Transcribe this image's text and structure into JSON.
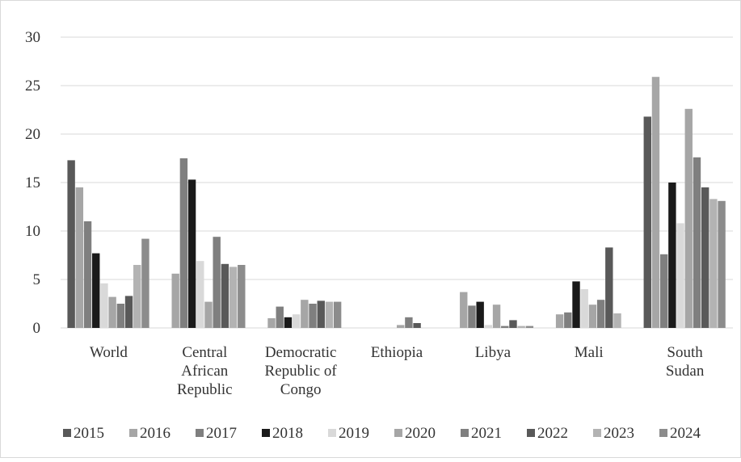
{
  "chart_data": {
    "type": "bar",
    "title": "",
    "xlabel": "",
    "ylabel": "",
    "ylim": [
      0,
      30
    ],
    "yticks": [
      "0",
      "5",
      "10",
      "15",
      "20",
      "25",
      "30"
    ],
    "grid": true,
    "legend_position": "bottom",
    "categories": [
      [
        "World"
      ],
      [
        "Central",
        "African",
        "Republic"
      ],
      [
        "Democratic",
        "Republic of",
        "Congo"
      ],
      [
        "Ethiopia"
      ],
      [
        "Libya"
      ],
      [
        "Mali"
      ],
      [
        "South",
        "Sudan"
      ]
    ],
    "series": [
      {
        "name": "2015",
        "color": "#595959",
        "values": [
          17.3,
          0,
          0,
          0,
          0,
          0,
          21.8
        ]
      },
      {
        "name": "2016",
        "color": "#a6a6a6",
        "values": [
          14.5,
          5.6,
          1.0,
          0,
          3.7,
          1.4,
          25.9
        ]
      },
      {
        "name": "2017",
        "color": "#7f7f7f",
        "values": [
          11.0,
          17.5,
          2.2,
          0,
          2.3,
          1.6,
          7.6
        ]
      },
      {
        "name": "2018",
        "color": "#1a1a1a",
        "values": [
          7.7,
          15.3,
          1.1,
          0,
          2.7,
          4.8,
          15.0
        ]
      },
      {
        "name": "2019",
        "color": "#d9d9d9",
        "values": [
          4.6,
          6.9,
          1.4,
          0,
          0.3,
          4.0,
          10.8
        ]
      },
      {
        "name": "2020",
        "color": "#a6a6a6",
        "values": [
          3.2,
          2.7,
          2.9,
          0.3,
          2.4,
          2.4,
          22.6
        ]
      },
      {
        "name": "2021",
        "color": "#7f7f7f",
        "values": [
          2.5,
          9.4,
          2.5,
          1.1,
          0.2,
          2.9,
          17.6
        ]
      },
      {
        "name": "2022",
        "color": "#595959",
        "values": [
          3.3,
          6.6,
          2.8,
          0.5,
          0.8,
          8.3,
          14.5
        ]
      },
      {
        "name": "2023",
        "color": "#b3b3b3",
        "values": [
          6.5,
          6.3,
          2.7,
          0,
          0.2,
          1.5,
          13.3
        ]
      },
      {
        "name": "2024",
        "color": "#8c8c8c",
        "values": [
          9.2,
          6.5,
          2.7,
          0,
          0.2,
          0,
          13.1
        ]
      }
    ]
  }
}
